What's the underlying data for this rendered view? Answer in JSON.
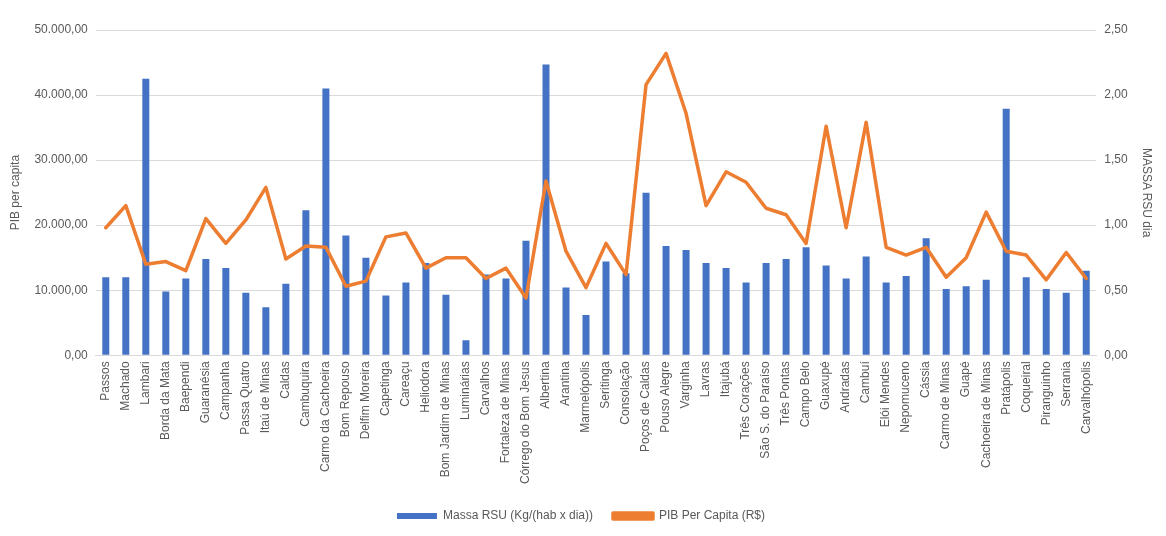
{
  "chart_data": {
    "type": "bar",
    "ylabel": "PIB per capita",
    "y2label": "MASSA RSU dia",
    "categories": [
      "Passos",
      "Machado",
      "Lambari",
      "Borda da Mata",
      "Baependi",
      "Guaranésia",
      "Campanha",
      "Passa Quatro",
      "Itaú de Minas",
      "Caldas",
      "Cambuquira",
      "Carmo da Cachoeira",
      "Bom Repouso",
      "Delfim Moreira",
      "Capetinga",
      "Careaçu",
      "Heliodora",
      "Bom Jardim de Minas",
      "Luminárias",
      "Carvalhos",
      "Fortaleza de Minas",
      "Córrego do Bom Jesus",
      "Albertina",
      "Arantina",
      "Marmelópolis",
      "Seritinga",
      "Consolação",
      "Poços de Caldas",
      "Pouso Alegre",
      "Varginha",
      "Lavras",
      "Itajubá",
      "Três Corações",
      "São S. do Paraíso",
      "Três Pontas",
      "Campo Belo",
      "Guaxupé",
      "Andradas",
      "Cambuí",
      "Elói Mendes",
      "Nepomuceno",
      "Cássia",
      "Carmo de Minas",
      "Guapé",
      "Cachoeira de Minas",
      "Pratápolis",
      "Coqueiral",
      "Piranguinho",
      "Serrania",
      "Carvalhópolis"
    ],
    "series": [
      {
        "name": "Massa RSU (Kg/(hab x dia))",
        "color": "#4472c4",
        "values": [
          12000,
          12000,
          42500,
          9800,
          11800,
          14800,
          13400,
          9600,
          7400,
          11000,
          22300,
          41000,
          18400,
          15000,
          9200,
          11200,
          14200,
          9300,
          2300,
          12400,
          11800,
          17600,
          44700,
          10400,
          6200,
          14400,
          12600,
          25000,
          16800,
          16200,
          14200,
          13400,
          11200,
          14200,
          14800,
          16600,
          13800,
          11800,
          15200,
          11200,
          12200,
          18000,
          10200,
          10600,
          11600,
          37900,
          12000,
          10200,
          9600,
          13000
        ]
      },
      {
        "name": "PIB Per Capita (R$)",
        "type": "line",
        "axis": "y2",
        "color": "#ed7d31",
        "values": [
          0.98,
          1.15,
          0.7,
          0.72,
          0.65,
          1.05,
          0.86,
          1.04,
          1.29,
          0.74,
          0.84,
          0.83,
          0.53,
          0.57,
          0.91,
          0.94,
          0.67,
          0.75,
          0.75,
          0.59,
          0.67,
          0.44,
          1.34,
          0.8,
          0.52,
          0.86,
          0.62,
          2.08,
          2.32,
          1.86,
          1.15,
          1.41,
          1.33,
          1.13,
          1.08,
          0.86,
          1.76,
          0.98,
          1.79,
          0.83,
          0.77,
          0.83,
          0.6,
          0.75,
          1.1,
          0.8,
          0.77,
          0.58,
          0.79,
          0.59
        ]
      }
    ],
    "ylim": [
      0,
      50000
    ],
    "yticks": [
      {
        "value": 0,
        "label": "0,00"
      },
      {
        "value": 10000,
        "label": "10.000,00"
      },
      {
        "value": 20000,
        "label": "20.000,00"
      },
      {
        "value": 30000,
        "label": "30.000,00"
      },
      {
        "value": 40000,
        "label": "40.000,00"
      },
      {
        "value": 50000,
        "label": "50.000,00"
      }
    ],
    "y2lim": [
      0,
      2.5
    ],
    "y2ticks": [
      {
        "value": 0,
        "label": "0,00"
      },
      {
        "value": 0.5,
        "label": "0,50"
      },
      {
        "value": 1,
        "label": "1,00"
      },
      {
        "value": 1.5,
        "label": "1,50"
      },
      {
        "value": 2,
        "label": "2,00"
      },
      {
        "value": 2.5,
        "label": "2,50"
      }
    ],
    "grid": "y",
    "legend": "bottom",
    "marker": "none",
    "line_style": "solid"
  }
}
